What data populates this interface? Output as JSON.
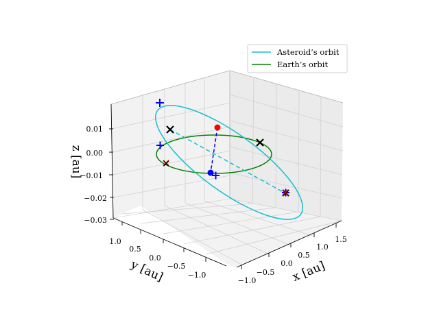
{
  "chart_data": {
    "type": "line3d",
    "xlabel": "x [au]",
    "ylabel": "y [au]",
    "zlabel": "z [au]",
    "xlim": [
      -1.1,
      1.6
    ],
    "ylim": [
      -1.3,
      1.1
    ],
    "zlim": [
      -0.03,
      0.02
    ],
    "x_ticks": [
      "−1.0",
      "−0.5",
      "0.0",
      "0.5",
      "1.0",
      "1.5"
    ],
    "y_ticks": [
      "1.0",
      "0.5",
      "0.0",
      "−0.5",
      "−1.0"
    ],
    "z_ticks": [
      "0.01",
      "0.00",
      "−0.01",
      "−0.02",
      "−0.03"
    ],
    "grid": true,
    "legend_position": "upper-right",
    "series": [
      {
        "name": "Asteroid’s orbit",
        "color": "#17becf",
        "style": "solid"
      },
      {
        "name": "Earth’s orbit",
        "color": "#008000",
        "style": "solid"
      }
    ],
    "markers": {
      "plus_blue": 4,
      "x_black": 3,
      "x_red": 2,
      "dot_red": 1,
      "dot_blue": 1
    }
  }
}
